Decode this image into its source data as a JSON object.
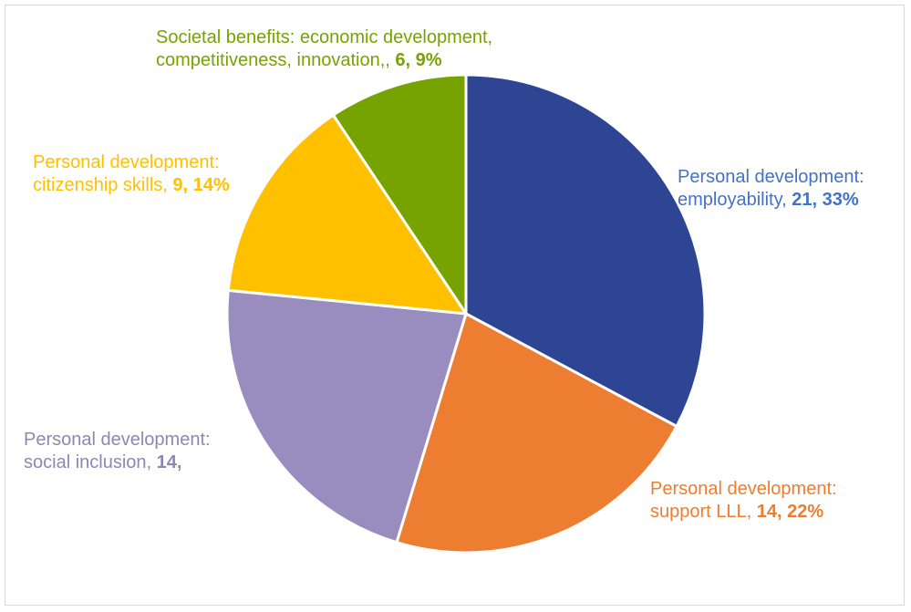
{
  "chart_data": {
    "type": "pie",
    "title": "",
    "slices": [
      {
        "category_line1": "Personal development:",
        "category_line2": "employability",
        "value": 21,
        "percent": "33%",
        "color": "#2E4593"
      },
      {
        "category_line1": "Personal development:",
        "category_line2": "support LLL",
        "value": 14,
        "percent": "22%",
        "color": "#ED7D31"
      },
      {
        "category_line1": "Personal development:",
        "category_line2": "social inclusion",
        "value": 14,
        "percent": "",
        "color": "#998CBE"
      },
      {
        "category_line1": "Personal development:",
        "category_line2": "citizenship skills",
        "value": 9,
        "percent": "14%",
        "color": "#FFC000"
      },
      {
        "category_line1": "Societal benefits: economic development,",
        "category_line2": "competitiveness, innovation,",
        "value": 6,
        "percent": "9%",
        "color": "#77A300"
      }
    ],
    "label_colors": [
      "#4472C4",
      "#ED7D31",
      "#8E87B4",
      "#FFC000",
      "#77A300"
    ],
    "legend": "none"
  }
}
